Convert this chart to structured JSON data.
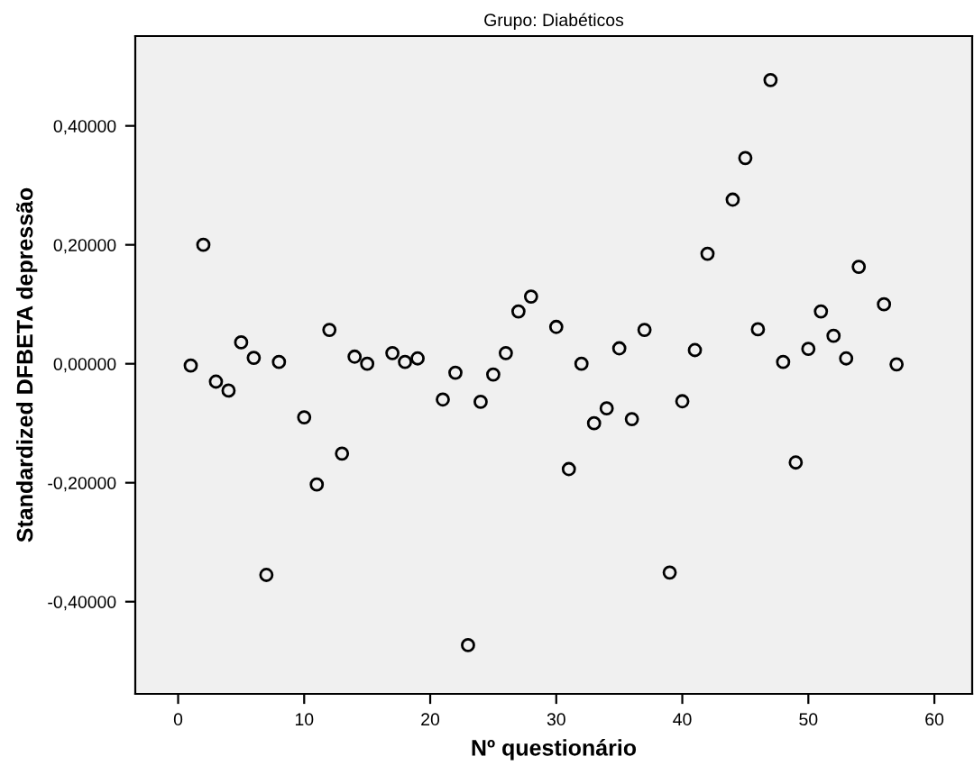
{
  "chart_data": {
    "type": "scatter",
    "title": "Grupo: Diabéticos",
    "xlabel": "Nº questionário",
    "ylabel": "Standardized DFBETA depressão",
    "x": [
      1,
      2,
      3,
      4,
      5,
      6,
      7,
      8,
      10,
      11,
      12,
      13,
      14,
      15,
      17,
      18,
      19,
      21,
      22,
      23,
      24,
      25,
      26,
      27,
      28,
      30,
      31,
      32,
      33,
      34,
      35,
      36,
      37,
      39,
      40,
      41,
      42,
      44,
      45,
      46,
      47,
      48,
      49,
      50,
      51,
      52,
      53,
      54,
      56,
      57
    ],
    "series": [
      {
        "color": "#000000",
        "values": [
          -0.003,
          0.2,
          -0.03,
          -0.045,
          0.036,
          0.01,
          -0.355,
          0.003,
          -0.09,
          -0.203,
          0.057,
          -0.151,
          0.012,
          0.0,
          0.018,
          0.003,
          0.009,
          -0.06,
          -0.015,
          -0.473,
          -0.064,
          -0.018,
          0.018,
          0.088,
          0.113,
          0.062,
          -0.177,
          0.0,
          -0.1,
          -0.075,
          0.026,
          -0.093,
          0.057,
          -0.351,
          -0.063,
          0.023,
          0.185,
          0.276,
          0.346,
          0.058,
          0.477,
          0.003,
          -0.166,
          0.025,
          0.088,
          0.047,
          0.009,
          0.163,
          0.1,
          -0.001
        ]
      }
    ],
    "marker": "circle",
    "xlim": [
      -3.4,
      63
    ],
    "xticks": [
      0,
      10,
      20,
      30,
      40,
      50,
      60
    ],
    "ylim": [
      -0.555,
      0.551
    ],
    "yticks": [
      {
        "value": -0.4,
        "label": "-0,40000"
      },
      {
        "value": -0.2,
        "label": "-0,20000"
      },
      {
        "value": 0,
        "label": "0,00000"
      },
      {
        "value": 0.2,
        "label": "0,20000"
      },
      {
        "value": 0.4,
        "label": "0,40000"
      }
    ],
    "grid": false,
    "legend": false
  }
}
